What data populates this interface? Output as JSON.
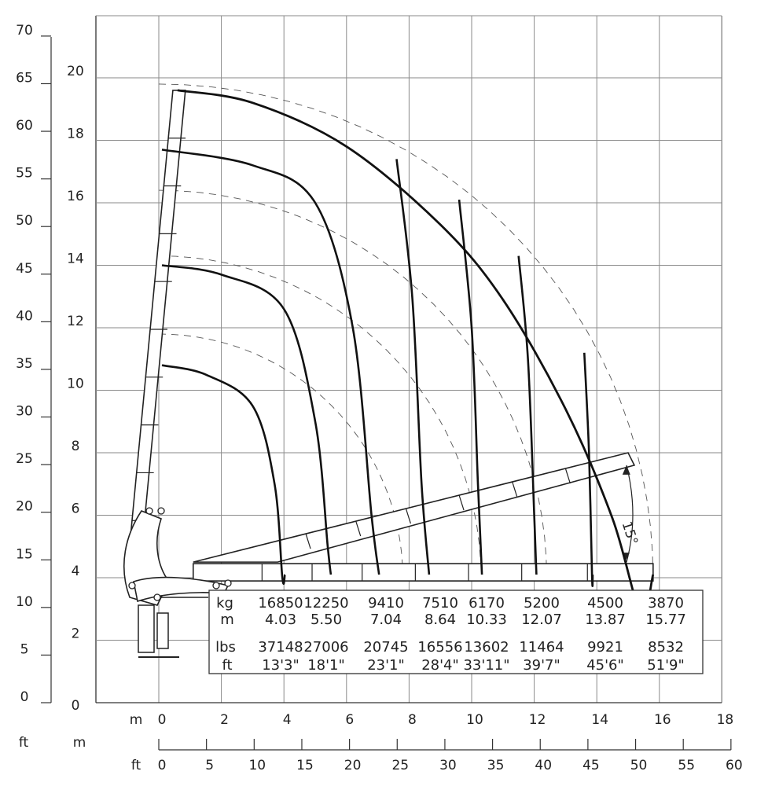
{
  "chart_data": {
    "type": "line",
    "title": "",
    "x_axis": {
      "unit_label": "m",
      "range": [
        0,
        18
      ],
      "ticks": [
        "0",
        "2",
        "4",
        "6",
        "8",
        "10",
        "12",
        "14",
        "16",
        "18"
      ]
    },
    "x_axis_ft": {
      "unit_label": "ft",
      "range": [
        0,
        60
      ],
      "ticks": [
        "0",
        "5",
        "10",
        "15",
        "20",
        "25",
        "30",
        "35",
        "40",
        "45",
        "50",
        "55",
        "60"
      ]
    },
    "y_axis_m": {
      "unit_label": "m",
      "range": [
        0,
        20
      ],
      "ticks": [
        "0",
        "2",
        "4",
        "6",
        "8",
        "10",
        "12",
        "14",
        "16",
        "18",
        "20"
      ]
    },
    "y_axis_ft": {
      "unit_label": "ft",
      "range": [
        0,
        70
      ],
      "ticks": [
        "0",
        "5",
        "10",
        "15",
        "20",
        "25",
        "30",
        "35",
        "40",
        "45",
        "50",
        "55",
        "60",
        "65",
        "70"
      ]
    },
    "grid": true,
    "angle_label": "15°",
    "envelope": {
      "name": "maximum reach",
      "x": [
        0.6,
        3,
        6,
        9,
        11,
        13,
        14.5,
        15.4,
        15.8
      ],
      "y": [
        19.6,
        19.2,
        17.8,
        15.3,
        12.9,
        9.4,
        5.9,
        2.9,
        0.0
      ]
    },
    "load_table": {
      "kg": [
        "16850",
        "12250",
        "9410",
        "7510",
        "6170",
        "5200",
        "4500",
        "3870"
      ],
      "m": [
        "4.03",
        "5.50",
        "7.04",
        "8.64",
        "10.33",
        "12.07",
        "13.87",
        "15.77"
      ],
      "lbs": [
        "37148",
        "27006",
        "20745",
        "16556",
        "13602",
        "11464",
        "9921",
        "8532"
      ],
      "ft": [
        "13'3\"",
        "18'1\"",
        "23'1\"",
        "28'4\"",
        "33'11\"",
        "39'7\"",
        "45'6\"",
        "51'9\""
      ],
      "row_labels": {
        "kg": "kg",
        "m": "m",
        "lbs": "lbs",
        "ft": "ft"
      }
    },
    "load_curves": [
      {
        "reach_m": 4.03,
        "x": [
          0.1,
          1.5,
          3.0,
          3.7,
          3.95,
          4.03
        ],
        "y": [
          10.8,
          10.5,
          9.5,
          7.0,
          4.0,
          0.0
        ]
      },
      {
        "reach_m": 5.5,
        "x": [
          0.1,
          2.0,
          4.0,
          5.0,
          5.4,
          5.5
        ],
        "y": [
          14.0,
          13.7,
          12.6,
          9.0,
          5.0,
          0.0
        ]
      },
      {
        "reach_m": 7.04,
        "x": [
          0.1,
          3.0,
          5.0,
          6.2,
          6.8,
          7.04
        ],
        "y": [
          17.7,
          17.2,
          16.0,
          12.0,
          6.0,
          0.0
        ]
      },
      {
        "reach_m": 8.64,
        "x": [
          7.6,
          8.1,
          8.4,
          8.64
        ],
        "y": [
          17.4,
          13.0,
          7.0,
          0.0
        ]
      },
      {
        "reach_m": 10.33,
        "x": [
          9.6,
          10.0,
          10.2,
          10.33
        ],
        "y": [
          16.1,
          12.0,
          7.0,
          0.0
        ]
      },
      {
        "reach_m": 12.07,
        "x": [
          11.5,
          11.8,
          12.0,
          12.07
        ],
        "y": [
          14.3,
          11.0,
          6.0,
          0.0
        ]
      },
      {
        "reach_m": 13.87,
        "x": [
          13.6,
          13.75,
          13.85,
          13.87
        ],
        "y": [
          11.2,
          8.0,
          4.0,
          0.0
        ]
      }
    ],
    "reference_arcs_radius_m": [
      7.8,
      10.3,
      12.4,
      15.8
    ]
  },
  "labels": {
    "axis_ft_left": "ft",
    "axis_m_left": "m",
    "x_m_label": "m",
    "x_ft_label": "ft"
  }
}
